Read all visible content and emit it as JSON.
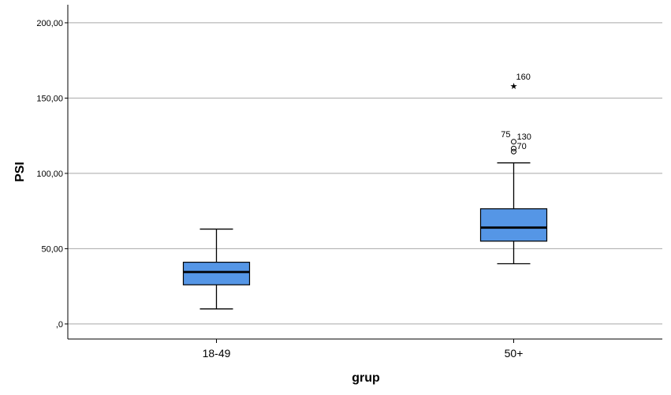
{
  "chart_data": {
    "type": "boxplot",
    "xlabel": "grup",
    "ylabel": "PSI",
    "ylim": [
      -10,
      212
    ],
    "yticks": [
      {
        "value": 0,
        "label": ",0"
      },
      {
        "value": 50,
        "label": "50,00"
      },
      {
        "value": 100,
        "label": "100,00"
      },
      {
        "value": 150,
        "label": "150,00"
      },
      {
        "value": 200,
        "label": "200,00"
      }
    ],
    "grid": true,
    "box_color": "#5596e6",
    "categories": [
      "18-49",
      "50+"
    ],
    "boxes": [
      {
        "category": "18-49",
        "whisker_low": 10,
        "q1": 26,
        "median": 34.5,
        "q3": 41,
        "whisker_high": 63,
        "outliers": []
      },
      {
        "category": "50+",
        "whisker_low": 40,
        "q1": 55,
        "median": 64,
        "q3": 76.5,
        "whisker_high": 107,
        "outliers": [
          {
            "value": 114.5,
            "marker": "circle",
            "label": "70"
          },
          {
            "value": 116.5,
            "marker": "circle",
            "label": ""
          },
          {
            "value": 121,
            "marker": "circle",
            "label": "130"
          },
          {
            "value": 123,
            "marker": "none",
            "label": "75"
          },
          {
            "value": 158,
            "marker": "star",
            "label": "160"
          }
        ]
      }
    ]
  }
}
